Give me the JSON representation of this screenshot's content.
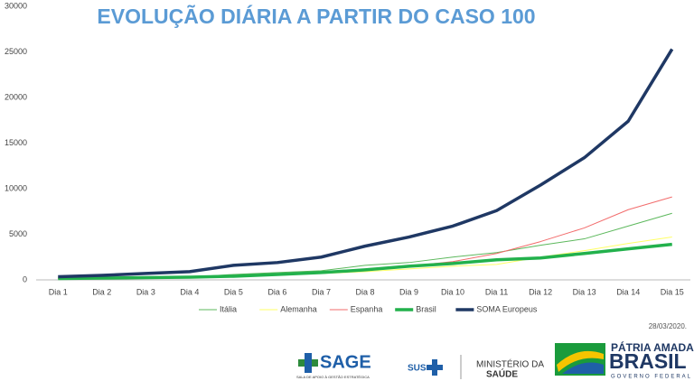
{
  "chart_data": {
    "type": "line",
    "title": "EVOLUÇÃO DIÁRIA A PARTIR DO CASO 100",
    "categories": [
      "Dia 1",
      "Dia 2",
      "Dia 3",
      "Dia 4",
      "Dia 5",
      "Dia 6",
      "Dia 7",
      "Dia 8",
      "Dia 9",
      "Dia 10",
      "Dia 11",
      "Dia 12",
      "Dia 13",
      "Dia 14",
      "Dia 15"
    ],
    "series": [
      {
        "name": "Itália",
        "color": "#5cb85c",
        "width": 1,
        "values": [
          150,
          200,
          250,
          300,
          600,
          800,
          1000,
          1600,
          1900,
          2500,
          3000,
          3800,
          4500,
          5900,
          7300
        ]
      },
      {
        "name": "Alemanha",
        "color": "#ffff66",
        "width": 1,
        "values": [
          150,
          150,
          200,
          250,
          350,
          500,
          700,
          900,
          1200,
          1500,
          1700,
          2500,
          3200,
          4000,
          4700
        ]
      },
      {
        "name": "Espanha",
        "color": "#f26b6b",
        "width": 1,
        "values": [
          150,
          200,
          250,
          300,
          500,
          600,
          700,
          1000,
          1500,
          2000,
          2900,
          4200,
          5700,
          7700,
          9100
        ]
      },
      {
        "name": "Brasil",
        "color": "#22b14c",
        "width": 3.5,
        "values": [
          150,
          200,
          250,
          300,
          400,
          600,
          800,
          1100,
          1500,
          1800,
          2200,
          2400,
          2900,
          3400,
          3900
        ]
      },
      {
        "name": "SOMA Europeus",
        "color": "#1f3864",
        "width": 3.5,
        "values": [
          350,
          500,
          700,
          900,
          1600,
          1900,
          2500,
          3700,
          4700,
          5900,
          7600,
          10400,
          13400,
          17400,
          25300
        ]
      }
    ],
    "ylim": [
      0,
      30000
    ],
    "yticks": [
      0,
      5000,
      10000,
      15000,
      20000,
      25000,
      30000
    ],
    "grid": false,
    "legend": "bottom"
  },
  "footer": {
    "date": "28/03/2020.",
    "sage": "SAGE",
    "sage_sub": "SALA DE APOIO À GESTÃO ESTRATÉGICA",
    "sus": "SUS",
    "ministry_1": "MINISTÉRIO DA",
    "ministry_2": "SAÚDE",
    "gov_1": "PÁTRIA AMADA",
    "gov_2": "BRASIL",
    "gov_3": "GOVERNO FEDERAL"
  }
}
